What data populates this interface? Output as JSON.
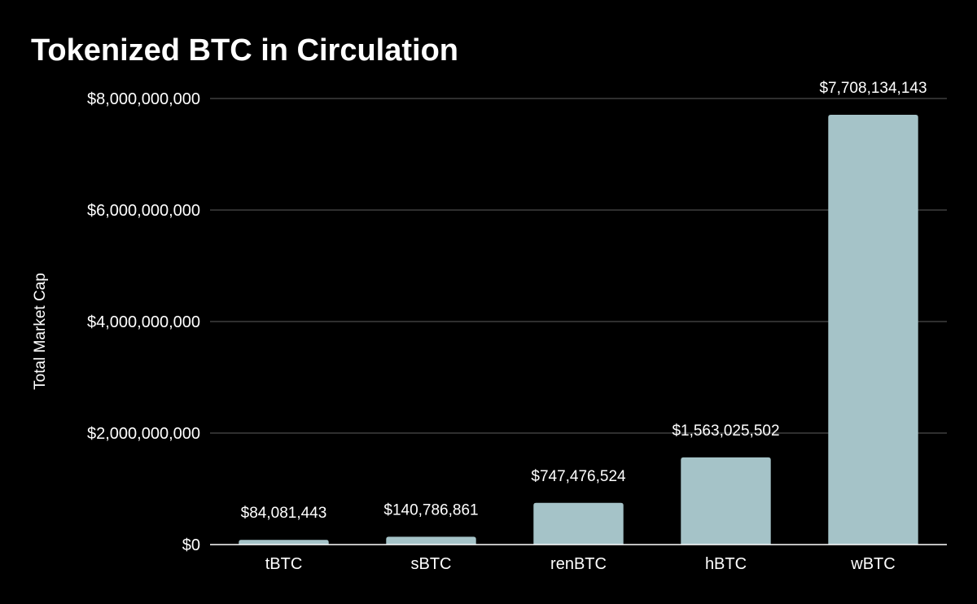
{
  "chart_data": {
    "type": "bar",
    "title": "Tokenized BTC in Circulation",
    "xlabel": "",
    "ylabel": "Total Market Cap",
    "categories": [
      "tBTC",
      "sBTC",
      "renBTC",
      "hBTC",
      "wBTC"
    ],
    "values": [
      84081443,
      140786861,
      747476524,
      1563025502,
      7708134143
    ],
    "value_labels": [
      "$84,081,443",
      "$140,786,861",
      "$747,476,524",
      "$1,563,025,502",
      "$7,708,134,143"
    ],
    "ylim": [
      0,
      8000000000
    ],
    "yticks": [
      0,
      2000000000,
      4000000000,
      6000000000,
      8000000000
    ],
    "ytick_labels": [
      "$0",
      "$2,000,000,000",
      "$4,000,000,000",
      "$6,000,000,000",
      "$8,000,000,000"
    ],
    "grid": true,
    "legend": "none",
    "colors": {
      "background": "#000000",
      "bar": "#a5c3c8",
      "grid": "#3f3f3f",
      "text": "#ffffff"
    }
  }
}
